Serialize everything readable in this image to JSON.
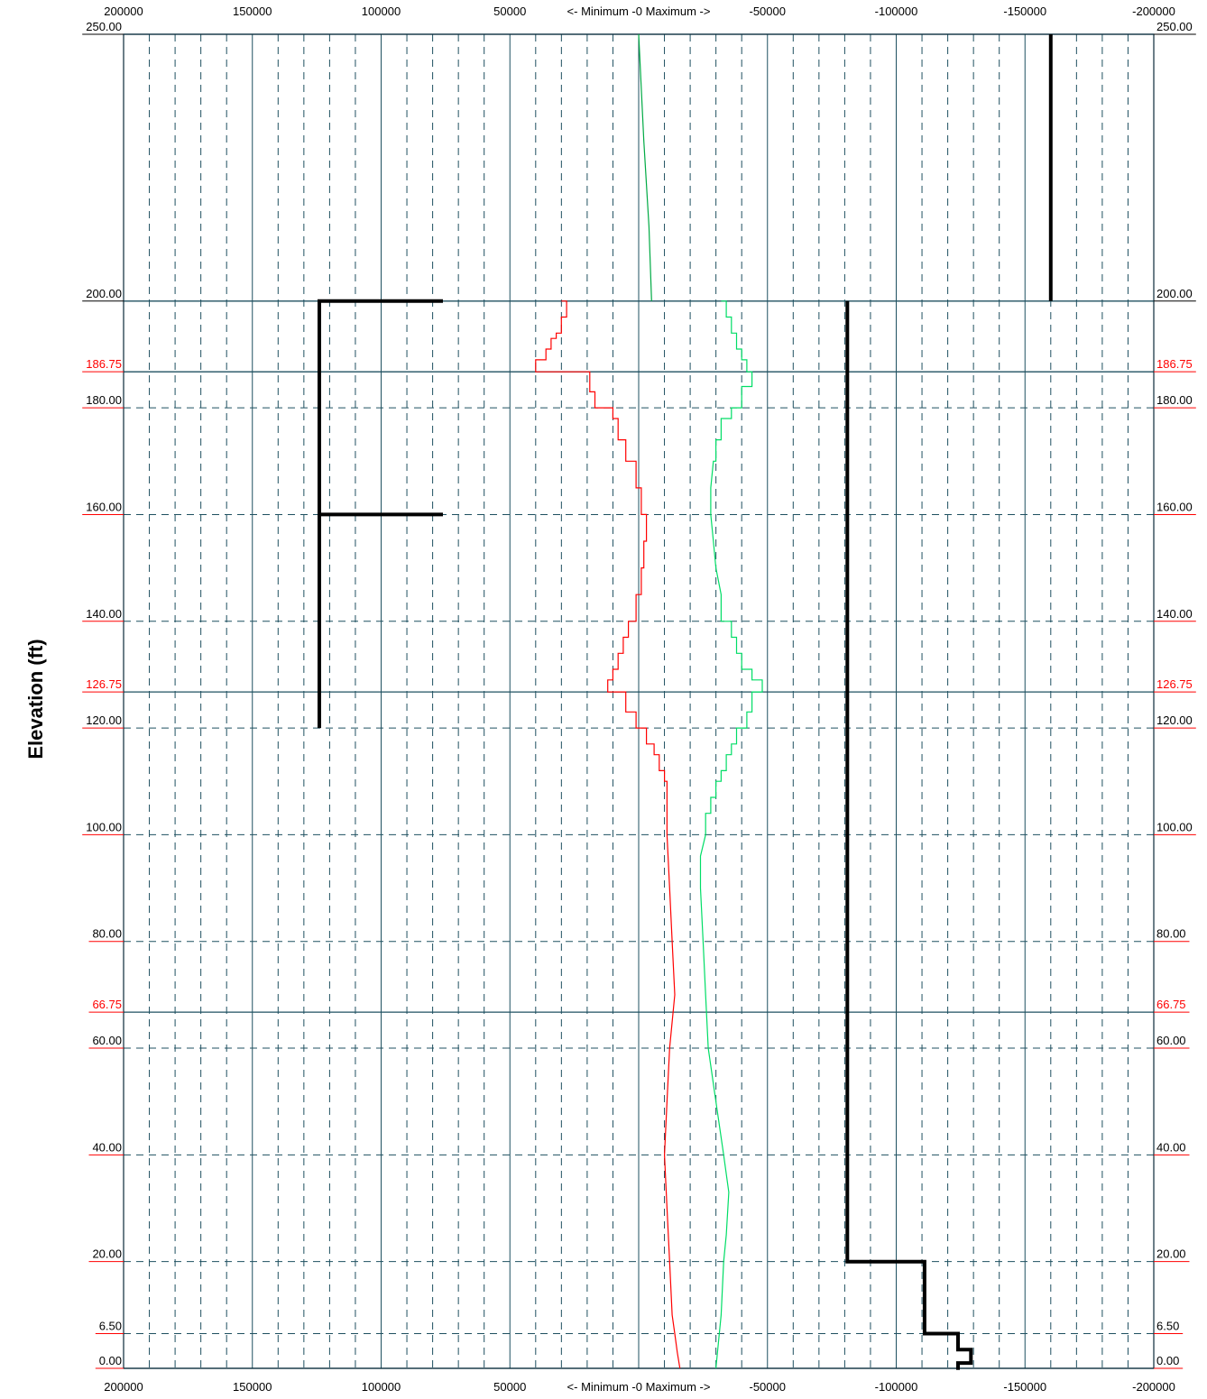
{
  "chart_data": {
    "type": "line",
    "title": "",
    "ylabel": "Elevation (ft)",
    "xlabel_center": "<- Minimum -0 Maximum ->",
    "x_axis": {
      "reversed": true,
      "range": [
        200000,
        -200000
      ],
      "tick_values": [
        200000,
        150000,
        100000,
        50000,
        -50000,
        -100000,
        -150000,
        -200000
      ],
      "tick_labels": [
        "200000",
        "150000",
        "100000",
        "50000",
        "-50000",
        "-100000",
        "-150000",
        "-200000"
      ],
      "minor_step": 10000,
      "major_step": 50000
    },
    "y_axis": {
      "range": [
        0,
        250
      ],
      "labels": [
        {
          "value": 250,
          "text": "250.00",
          "color": "#000000",
          "underline": "#000000"
        },
        {
          "value": 200,
          "text": "200.00",
          "color": "#000000",
          "underline": "#000000"
        },
        {
          "value": 186.75,
          "text": "186.75",
          "color": "#ff0000",
          "underline": "#ff0000"
        },
        {
          "value": 180,
          "text": "180.00",
          "color": "#000000",
          "underline": "#ff0000"
        },
        {
          "value": 160,
          "text": "160.00",
          "color": "#000000",
          "underline": "#ff0000"
        },
        {
          "value": 140,
          "text": "140.00",
          "color": "#000000",
          "underline": "#ff0000"
        },
        {
          "value": 126.75,
          "text": "126.75",
          "color": "#ff0000",
          "underline": "#ff0000"
        },
        {
          "value": 120,
          "text": "120.00",
          "color": "#000000",
          "underline": "#ff0000"
        },
        {
          "value": 100,
          "text": "100.00",
          "color": "#000000",
          "underline": "#ff0000"
        },
        {
          "value": 80,
          "text": "80.00",
          "color": "#000000",
          "underline": "#ff0000"
        },
        {
          "value": 66.75,
          "text": "66.75",
          "color": "#ff0000",
          "underline": "#ff0000"
        },
        {
          "value": 60,
          "text": "60.00",
          "color": "#000000",
          "underline": "#ff0000"
        },
        {
          "value": 40,
          "text": "40.00",
          "color": "#000000",
          "underline": "#ff0000"
        },
        {
          "value": 20,
          "text": "20.00",
          "color": "#000000",
          "underline": "#ff0000"
        },
        {
          "value": 6.5,
          "text": "6.50",
          "color": "#000000",
          "underline": "#ff0000"
        },
        {
          "value": 0,
          "text": "0.00",
          "color": "#000000",
          "underline": "#ff0000"
        }
      ],
      "solid_lines": [
        250,
        200,
        186.75,
        126.75,
        66.75,
        0
      ],
      "dashed_lines": [
        180,
        160,
        140,
        120,
        100,
        80,
        60,
        40,
        20,
        6.5
      ]
    },
    "colors": {
      "grid_major": "#1f5060",
      "grid_minor": "#1f5060",
      "minimum_series": "#ff0000",
      "maximum_series": "#00dd66",
      "upper_series": "#00aa44",
      "structure": "#000000",
      "border": "#0a2a3a"
    },
    "series": [
      {
        "color_key": "upper_series",
        "style": "line",
        "points": [
          [
            0,
            250
          ],
          [
            -2000,
            230
          ],
          [
            -4000,
            214
          ],
          [
            -5000,
            200
          ]
        ]
      },
      {
        "color_key": "minimum_series",
        "style": "step",
        "points": [
          [
            30000,
            200
          ],
          [
            28000,
            200
          ],
          [
            28000,
            197
          ],
          [
            30000,
            197
          ],
          [
            30000,
            194
          ],
          [
            32000,
            194
          ],
          [
            32000,
            193
          ],
          [
            34000,
            193
          ],
          [
            34000,
            191
          ],
          [
            36000,
            191
          ],
          [
            36000,
            189
          ],
          [
            40000,
            189
          ],
          [
            40000,
            186.75
          ],
          [
            19000,
            186.75
          ],
          [
            19000,
            183
          ],
          [
            17000,
            183
          ],
          [
            17000,
            180
          ],
          [
            10000,
            180
          ],
          [
            10000,
            178
          ],
          [
            8000,
            178
          ],
          [
            8000,
            174
          ],
          [
            5000,
            174
          ],
          [
            5000,
            170
          ],
          [
            1000,
            170
          ],
          [
            1000,
            165
          ],
          [
            -1000,
            165
          ],
          [
            -1000,
            160
          ],
          [
            -3000,
            160
          ],
          [
            -3000,
            155
          ],
          [
            -2000,
            155
          ],
          [
            -2000,
            150
          ],
          [
            -1000,
            150
          ],
          [
            -1000,
            145
          ],
          [
            1000,
            145
          ],
          [
            1000,
            140
          ],
          [
            4000,
            140
          ],
          [
            4000,
            137
          ],
          [
            6000,
            137
          ],
          [
            6000,
            134
          ],
          [
            8000,
            134
          ],
          [
            8000,
            131
          ],
          [
            10000,
            131
          ],
          [
            10000,
            129
          ],
          [
            12000,
            129
          ],
          [
            12000,
            126.75
          ],
          [
            5000,
            126.75
          ],
          [
            5000,
            123
          ],
          [
            1000,
            123
          ],
          [
            1000,
            120
          ],
          [
            -3000,
            120
          ],
          [
            -3000,
            117
          ],
          [
            -6000,
            117
          ],
          [
            -6000,
            115
          ],
          [
            -8000,
            115
          ],
          [
            -8000,
            112
          ],
          [
            -10000,
            112
          ],
          [
            -10000,
            110
          ],
          [
            -11000,
            110
          ],
          [
            -11000,
            100
          ],
          [
            -12000,
            90
          ],
          [
            -13000,
            80
          ],
          [
            -14000,
            70
          ],
          [
            -12000,
            60
          ],
          [
            -11000,
            50
          ],
          [
            -10000,
            40
          ],
          [
            -11000,
            30
          ],
          [
            -12000,
            20
          ],
          [
            -13000,
            10
          ],
          [
            -14000,
            6.5
          ],
          [
            -15000,
            3
          ],
          [
            -16000,
            0
          ]
        ]
      },
      {
        "color_key": "maximum_series",
        "style": "step",
        "points": [
          [
            -32000,
            200
          ],
          [
            -34000,
            200
          ],
          [
            -34000,
            197
          ],
          [
            -36000,
            197
          ],
          [
            -36000,
            194
          ],
          [
            -38000,
            194
          ],
          [
            -38000,
            191
          ],
          [
            -40000,
            191
          ],
          [
            -40000,
            189
          ],
          [
            -42000,
            189
          ],
          [
            -42000,
            186.75
          ],
          [
            -44000,
            186.75
          ],
          [
            -44000,
            184
          ],
          [
            -40000,
            184
          ],
          [
            -40000,
            180
          ],
          [
            -36000,
            180
          ],
          [
            -36000,
            178
          ],
          [
            -32000,
            178
          ],
          [
            -32000,
            174
          ],
          [
            -30000,
            174
          ],
          [
            -30000,
            170
          ],
          [
            -29000,
            170
          ],
          [
            -28000,
            165
          ],
          [
            -28000,
            160
          ],
          [
            -29000,
            155
          ],
          [
            -30000,
            150
          ],
          [
            -32000,
            145
          ],
          [
            -32000,
            140
          ],
          [
            -36000,
            140
          ],
          [
            -36000,
            137
          ],
          [
            -38000,
            137
          ],
          [
            -38000,
            134
          ],
          [
            -40000,
            134
          ],
          [
            -40000,
            131
          ],
          [
            -44000,
            131
          ],
          [
            -44000,
            129
          ],
          [
            -48000,
            129
          ],
          [
            -48000,
            126.75
          ],
          [
            -44000,
            126.75
          ],
          [
            -44000,
            123
          ],
          [
            -42000,
            123
          ],
          [
            -42000,
            120
          ],
          [
            -38000,
            120
          ],
          [
            -38000,
            117
          ],
          [
            -36000,
            117
          ],
          [
            -36000,
            115
          ],
          [
            -34000,
            115
          ],
          [
            -34000,
            112
          ],
          [
            -32000,
            112
          ],
          [
            -32000,
            110
          ],
          [
            -30000,
            110
          ],
          [
            -30000,
            107
          ],
          [
            -28000,
            107
          ],
          [
            -28000,
            104
          ],
          [
            -26000,
            104
          ],
          [
            -26000,
            100
          ],
          [
            -24000,
            96
          ],
          [
            -24000,
            90
          ],
          [
            -25000,
            80
          ],
          [
            -26000,
            70
          ],
          [
            -27000,
            60
          ],
          [
            -30000,
            50
          ],
          [
            -33000,
            40
          ],
          [
            -35000,
            33
          ],
          [
            -34000,
            25
          ],
          [
            -33000,
            20
          ],
          [
            -32000,
            10
          ],
          [
            -30000,
            0
          ]
        ]
      },
      {
        "color_key": "structure",
        "style": "thick",
        "width": 4,
        "points": [
          [
            76000,
            200
          ],
          [
            124000,
            200
          ],
          [
            124000,
            120
          ]
        ]
      },
      {
        "color_key": "structure",
        "style": "thick",
        "width": 4,
        "points": [
          [
            124000,
            160
          ],
          [
            76000,
            160
          ]
        ]
      },
      {
        "color_key": "structure",
        "style": "thick",
        "width": 4,
        "points": [
          [
            -160000,
            250
          ],
          [
            -160000,
            200
          ]
        ]
      },
      {
        "color_key": "structure",
        "style": "thick",
        "width": 4,
        "points": [
          [
            -81000,
            200
          ],
          [
            -81000,
            20
          ],
          [
            -111000,
            20
          ],
          [
            -111000,
            6.5
          ],
          [
            -124000,
            6.5
          ],
          [
            -124000,
            3.5
          ],
          [
            -129000,
            3.5
          ],
          [
            -129000,
            1
          ],
          [
            -124000,
            1
          ],
          [
            -124000,
            -0.3
          ]
        ]
      }
    ]
  }
}
